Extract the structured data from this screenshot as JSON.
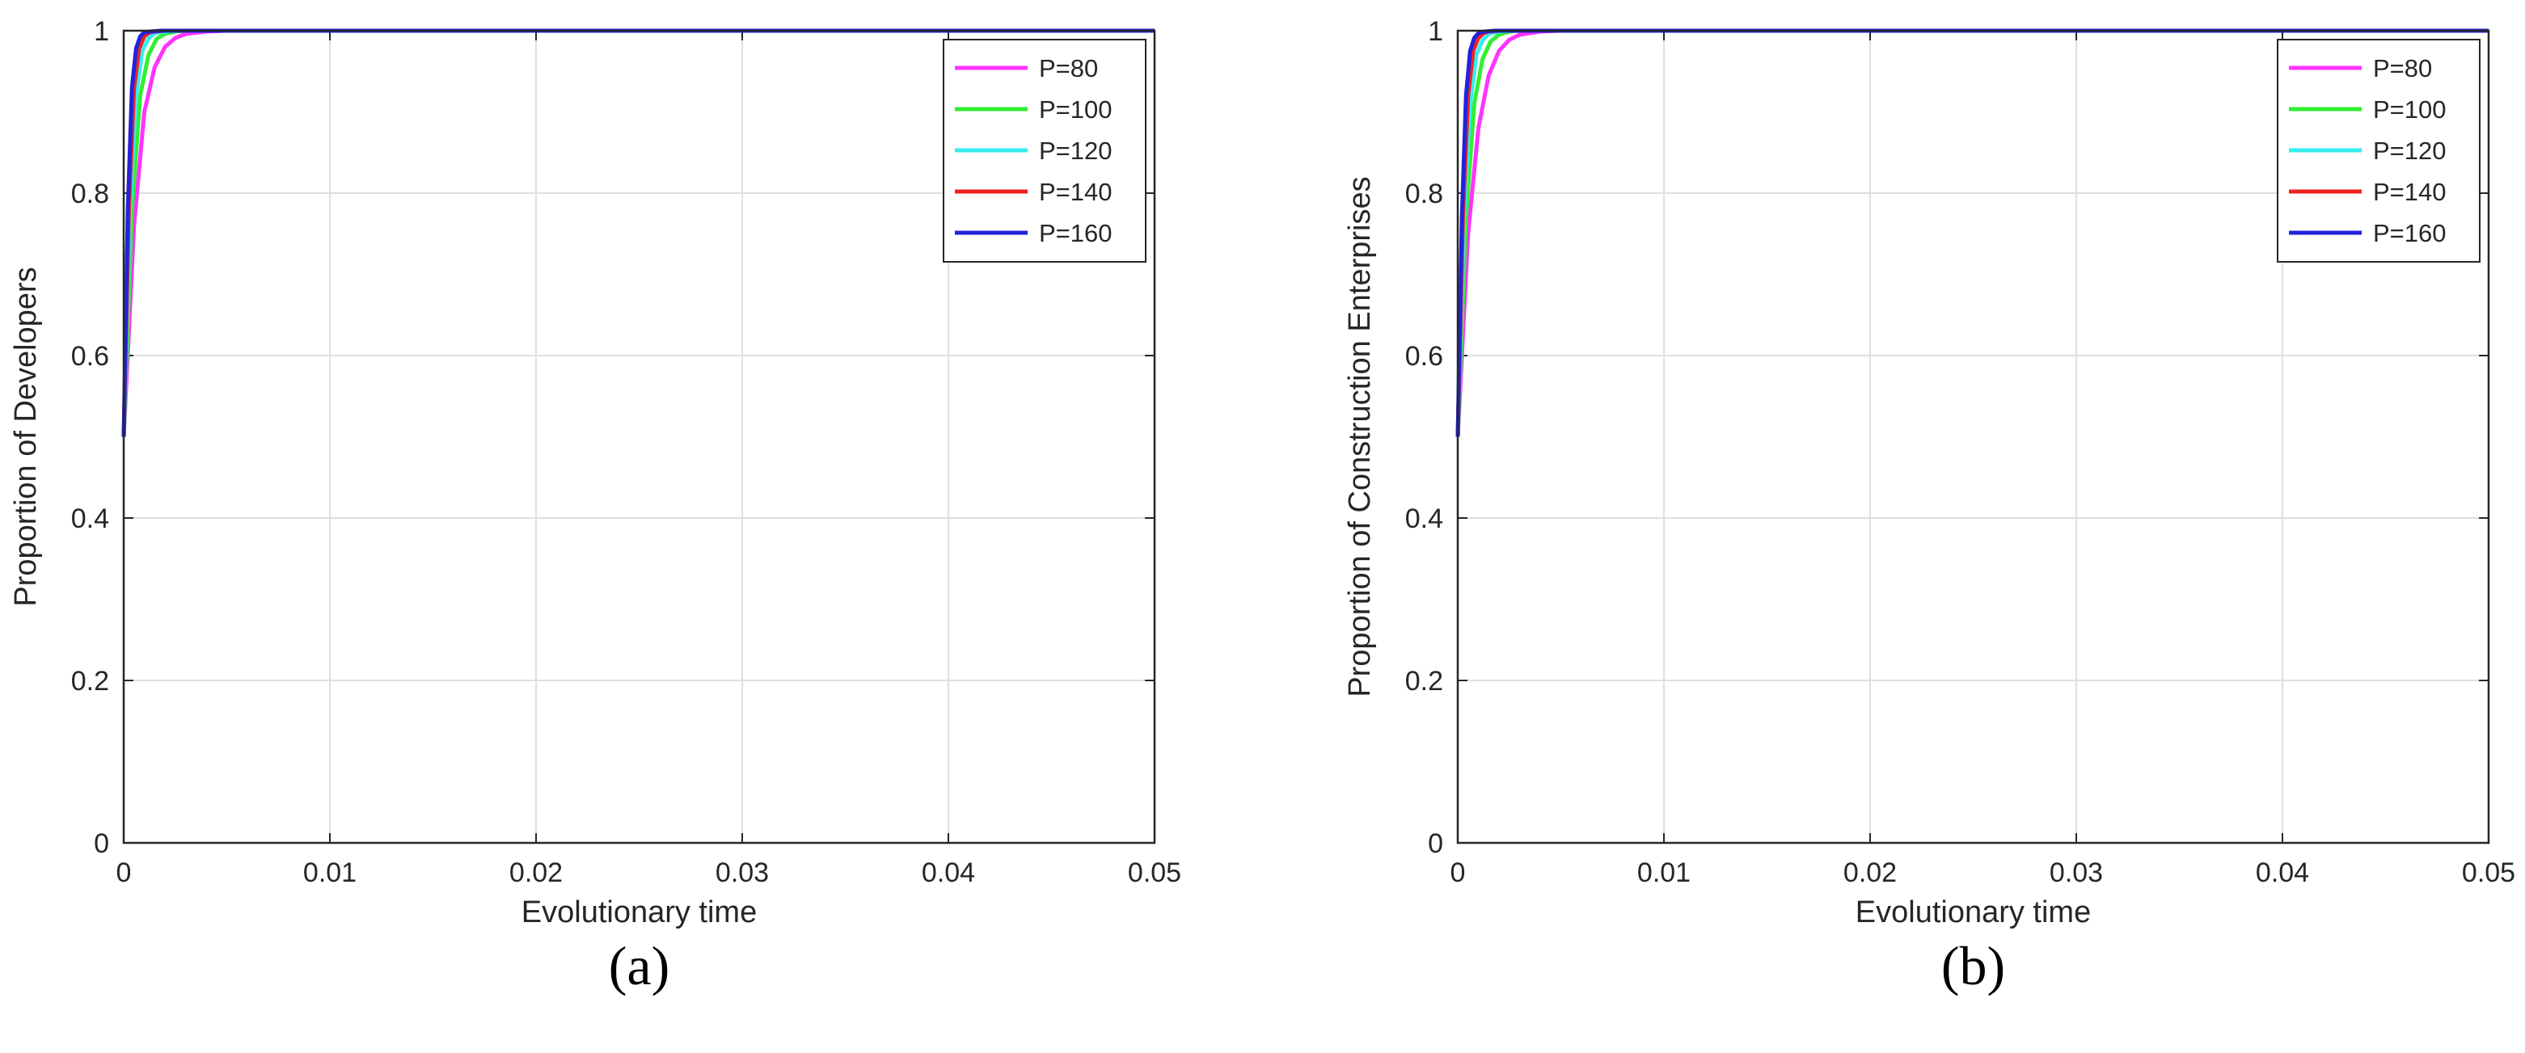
{
  "chart_data": [
    {
      "type": "line",
      "panel_label": "(a)",
      "xlabel": "Evolutionary time",
      "ylabel": "Proportion of Developers",
      "xlim": [
        0,
        0.05
      ],
      "ylim": [
        0,
        1
      ],
      "xticks": [
        "0",
        "0.01",
        "0.02",
        "0.03",
        "0.04",
        "0.05"
      ],
      "yticks": [
        "0",
        "0.2",
        "0.4",
        "0.6",
        "0.8",
        "1"
      ],
      "grid": true,
      "legend_position": "top-right",
      "series": [
        {
          "name": "P=80",
          "color": "#ff33ff",
          "x": [
            0,
            0.0005,
            0.001,
            0.0015,
            0.002,
            0.0025,
            0.003,
            0.004,
            0.005,
            0.006,
            0.05
          ],
          "y": [
            0.5,
            0.76,
            0.9,
            0.955,
            0.98,
            0.991,
            0.996,
            0.999,
            1,
            1,
            1
          ]
        },
        {
          "name": "P=100",
          "color": "#33ee33",
          "x": [
            0,
            0.0004,
            0.0008,
            0.0012,
            0.0016,
            0.002,
            0.0025,
            0.003,
            0.004,
            0.05
          ],
          "y": [
            0.5,
            0.78,
            0.92,
            0.97,
            0.99,
            0.996,
            0.999,
            1,
            1,
            1
          ]
        },
        {
          "name": "P=120",
          "color": "#33eeee",
          "x": [
            0,
            0.0003,
            0.0006,
            0.0009,
            0.0012,
            0.0015,
            0.002,
            0.0025,
            0.05
          ],
          "y": [
            0.5,
            0.78,
            0.92,
            0.975,
            0.99,
            0.997,
            0.999,
            1,
            1
          ]
        },
        {
          "name": "P=140",
          "color": "#ee2222",
          "x": [
            0,
            0.00025,
            0.0005,
            0.00075,
            0.001,
            0.00125,
            0.0015,
            0.002,
            0.05
          ],
          "y": [
            0.5,
            0.78,
            0.93,
            0.978,
            0.993,
            0.998,
            0.999,
            1,
            1
          ]
        },
        {
          "name": "P=160",
          "color": "#2222dd",
          "x": [
            0,
            0.0002,
            0.0004,
            0.0006,
            0.0008,
            0.001,
            0.0013,
            0.0018,
            0.05
          ],
          "y": [
            0.5,
            0.78,
            0.93,
            0.978,
            0.993,
            0.998,
            0.999,
            1,
            1
          ]
        }
      ]
    },
    {
      "type": "line",
      "panel_label": "(b)",
      "xlabel": "Evolutionary time",
      "ylabel": "Proportion of Construction Enterprises",
      "xlim": [
        0,
        0.05
      ],
      "ylim": [
        0,
        1
      ],
      "xticks": [
        "0",
        "0.01",
        "0.02",
        "0.03",
        "0.04",
        "0.05"
      ],
      "yticks": [
        "0",
        "0.2",
        "0.4",
        "0.6",
        "0.8",
        "1"
      ],
      "grid": true,
      "legend_position": "top-right",
      "series": [
        {
          "name": "P=80",
          "color": "#ff33ff",
          "x": [
            0,
            0.0005,
            0.001,
            0.0015,
            0.002,
            0.0025,
            0.003,
            0.004,
            0.005,
            0.006,
            0.05
          ],
          "y": [
            0.5,
            0.75,
            0.88,
            0.945,
            0.975,
            0.989,
            0.995,
            0.999,
            1,
            1,
            1
          ]
        },
        {
          "name": "P=100",
          "color": "#33ee33",
          "x": [
            0,
            0.0004,
            0.0008,
            0.0012,
            0.0016,
            0.002,
            0.0025,
            0.003,
            0.004,
            0.05
          ],
          "y": [
            0.5,
            0.77,
            0.91,
            0.965,
            0.987,
            0.995,
            0.999,
            1,
            1,
            1
          ]
        },
        {
          "name": "P=120",
          "color": "#33eeee",
          "x": [
            0,
            0.0003,
            0.0006,
            0.0009,
            0.0012,
            0.0015,
            0.002,
            0.0025,
            0.05
          ],
          "y": [
            0.5,
            0.77,
            0.91,
            0.97,
            0.988,
            0.996,
            0.999,
            1,
            1
          ]
        },
        {
          "name": "P=140",
          "color": "#ee2222",
          "x": [
            0,
            0.00025,
            0.0005,
            0.00075,
            0.001,
            0.00125,
            0.0015,
            0.002,
            0.05
          ],
          "y": [
            0.5,
            0.77,
            0.92,
            0.975,
            0.991,
            0.997,
            0.999,
            1,
            1
          ]
        },
        {
          "name": "P=160",
          "color": "#2222dd",
          "x": [
            0,
            0.0002,
            0.0004,
            0.0006,
            0.0008,
            0.001,
            0.0013,
            0.0018,
            0.05
          ],
          "y": [
            0.5,
            0.77,
            0.92,
            0.975,
            0.991,
            0.997,
            0.999,
            1,
            1
          ]
        }
      ]
    }
  ]
}
